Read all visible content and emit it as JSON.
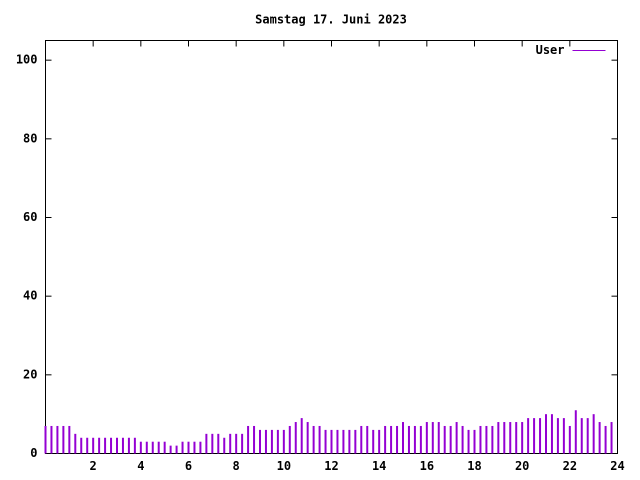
{
  "chart_data": {
    "type": "impulse",
    "title": "Samstag 17. Juni 2023",
    "x": [
      0,
      0.25,
      0.5,
      0.75,
      1,
      1.25,
      1.5,
      1.75,
      2,
      2.25,
      2.5,
      2.75,
      3,
      3.25,
      3.5,
      3.75,
      4,
      4.25,
      4.5,
      4.75,
      5,
      5.25,
      5.5,
      5.75,
      6,
      6.25,
      6.5,
      6.75,
      7,
      7.25,
      7.5,
      7.75,
      8,
      8.25,
      8.5,
      8.75,
      9,
      9.25,
      9.5,
      9.75,
      10,
      10.25,
      10.5,
      10.75,
      11,
      11.25,
      11.5,
      11.75,
      12,
      12.25,
      12.5,
      12.75,
      13,
      13.25,
      13.5,
      13.75,
      14,
      14.25,
      14.5,
      14.75,
      15,
      15.25,
      15.5,
      15.75,
      16,
      16.25,
      16.5,
      16.75,
      17,
      17.25,
      17.5,
      17.75,
      18,
      18.25,
      18.5,
      18.75,
      19,
      19.25,
      19.5,
      19.75,
      20,
      20.25,
      20.5,
      20.75,
      21,
      21.25,
      21.5,
      21.75,
      22,
      22.25,
      22.5,
      22.75,
      23,
      23.25,
      23.5,
      23.75
    ],
    "series": [
      {
        "name": "User",
        "color": "#9400d3",
        "values": [
          7,
          7,
          7,
          7,
          7,
          5,
          4,
          4,
          4,
          4,
          4,
          4,
          4,
          4,
          4,
          4,
          3,
          3,
          3,
          3,
          3,
          2,
          2,
          3,
          3,
          3,
          3,
          5,
          5,
          5,
          4,
          5,
          5,
          5,
          7,
          7,
          6,
          6,
          6,
          6,
          6,
          7,
          8,
          9,
          8,
          7,
          7,
          6,
          6,
          6,
          6,
          6,
          6,
          7,
          7,
          6,
          6,
          7,
          7,
          7,
          8,
          7,
          7,
          7,
          8,
          8,
          8,
          7,
          7,
          8,
          7,
          6,
          6,
          7,
          7,
          7,
          8,
          8,
          8,
          8,
          8,
          9,
          9,
          9,
          10,
          10,
          9,
          9,
          7,
          11,
          9,
          9,
          10,
          8,
          7,
          8
        ]
      }
    ],
    "xlim": [
      0,
      24
    ],
    "xticks": [
      2,
      4,
      6,
      8,
      10,
      12,
      14,
      16,
      18,
      20,
      22,
      24
    ],
    "ylim": [
      0,
      105
    ],
    "yticks": [
      0,
      20,
      40,
      60,
      80,
      100
    ],
    "legend": "top-right"
  }
}
